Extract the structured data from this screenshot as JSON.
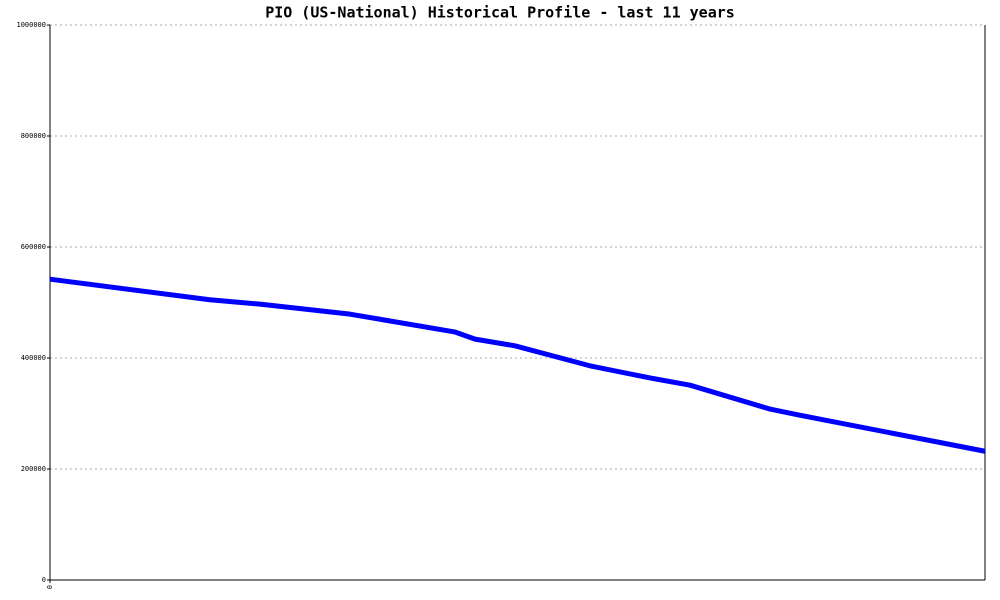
{
  "chart_data": {
    "type": "line",
    "title": "PIO (US-National) Historical Profile - last 11 years",
    "series": [
      {
        "name": "PIO",
        "color": "#0000ff",
        "x": [
          0,
          1.88,
          2.47,
          3.53,
          4.76,
          5.0,
          5.47,
          6.35,
          7.06,
          7.53,
          8.47,
          8.82,
          11
        ],
        "values": [
          542000,
          505000,
          497000,
          479000,
          447000,
          434000,
          422000,
          386000,
          364000,
          351000,
          308000,
          297000,
          232000
        ]
      }
    ],
    "xlim": [
      0,
      11
    ],
    "xticks": [
      0
    ],
    "ylim": [
      0,
      1000000
    ],
    "yticks": [
      0,
      200000,
      400000,
      600000,
      800000,
      1000000
    ],
    "grid": true
  }
}
